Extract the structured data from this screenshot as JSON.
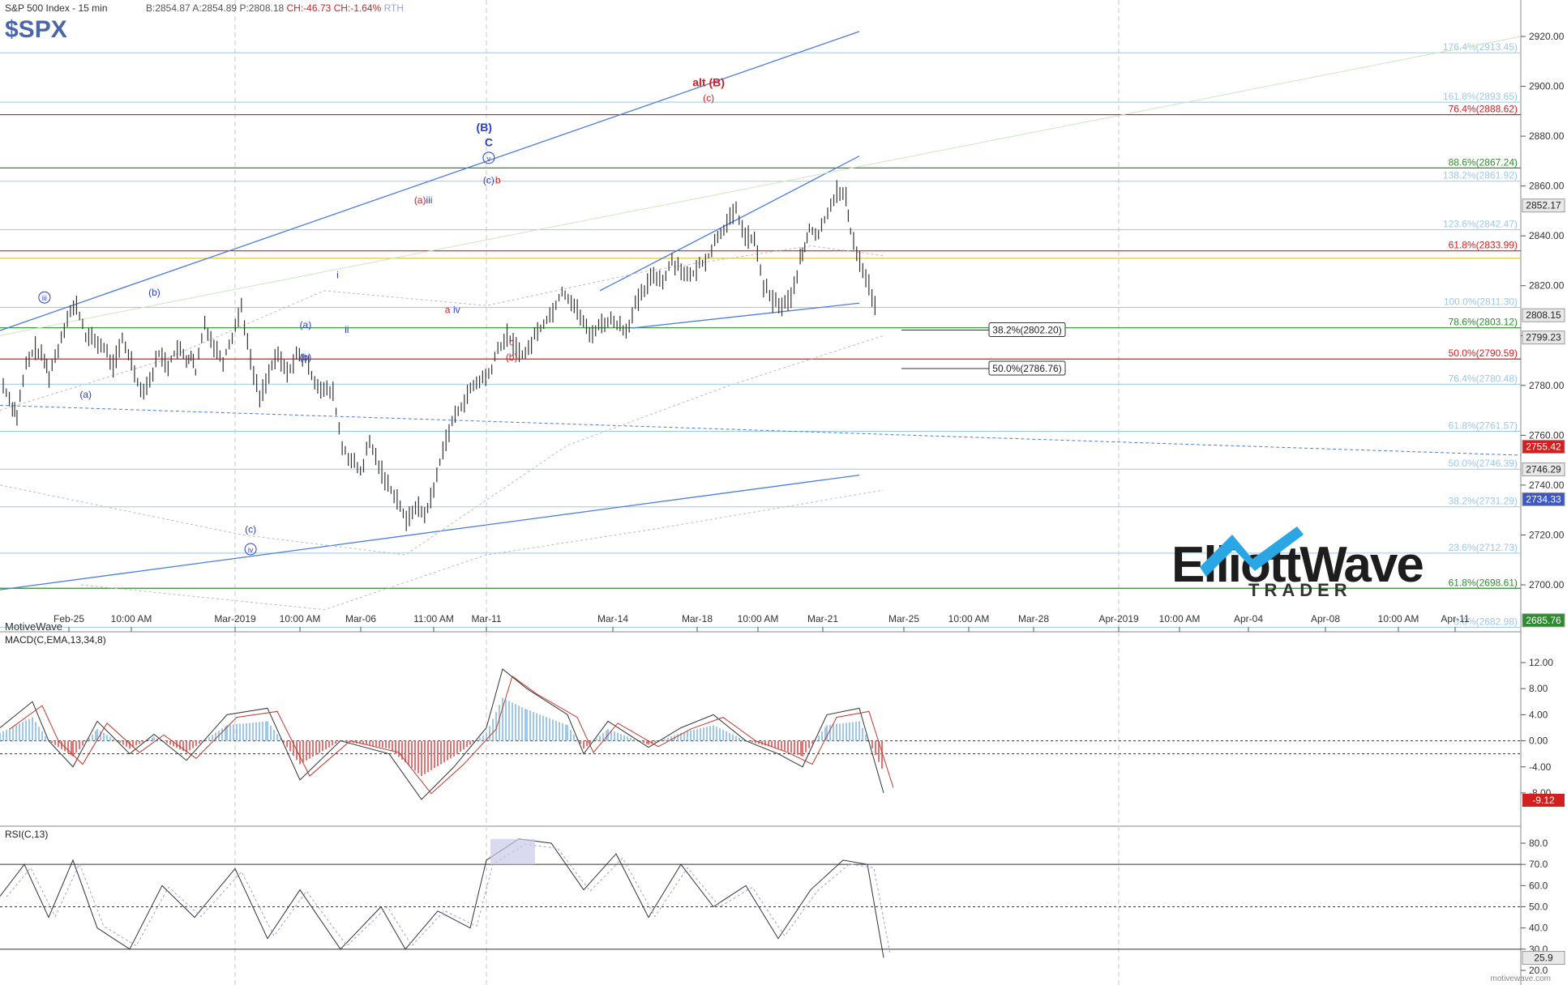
{
  "header": {
    "title": "S&P 500 Index - 15 min",
    "bid": "B:2854.87",
    "ask": "A:2854.89",
    "price": "P:2808.18",
    "change": "CH:-46.73",
    "change_pct": "CH:-1.64%",
    "session": "RTH",
    "symbol": "$SPX"
  },
  "brand": "MotiveWave",
  "watermark": "motivewave.com",
  "logo": {
    "line1": "ElliottWave",
    "line2": "TRADER"
  },
  "colors": {
    "blue_fib": "#9cc8ea",
    "red_fib": "#d21f1f",
    "green_fib": "#2e8b2e",
    "yellow_fib": "#e2c93a",
    "trend": "#4a7de0",
    "bars": "#333333",
    "wave_blue": "#2a3fc8",
    "wave_red": "#d21f1f"
  },
  "chart_data": [
    {
      "type": "ohlc",
      "panel": "price",
      "title": "S&P 500 Index - 15 min",
      "ylim": [
        2680,
        2930
      ],
      "y_ticks": [
        2700,
        2720,
        2740,
        2760,
        2780,
        2800,
        2820,
        2840,
        2860,
        2880,
        2900,
        2920
      ],
      "y_tick_labels": [
        "2700.00",
        "2720.00",
        "2740.00",
        "2760.00",
        "2780.00",
        "2800.00",
        "2820.00",
        "2840.00",
        "2860.00",
        "2880.00",
        "2900.00",
        "2920.00"
      ],
      "x_labels": [
        "Feb-25",
        "10:00 AM",
        "Mar-2019",
        "10:00 AM",
        "Mar-06",
        "11:00 AM",
        "Mar-11",
        "Mar-14",
        "Mar-18",
        "10:00 AM",
        "Mar-21",
        "Mar-25",
        "10:00 AM",
        "Mar-28",
        "Apr-2019",
        "10:00 AM",
        "Apr-04",
        "Apr-08",
        "10:00 AM",
        "Apr-11"
      ],
      "close_path": [
        [
          0,
          2780
        ],
        [
          2,
          2772
        ],
        [
          3,
          2768
        ],
        [
          5,
          2788
        ],
        [
          7,
          2795
        ],
        [
          9,
          2790
        ],
        [
          10,
          2784
        ],
        [
          12,
          2795
        ],
        [
          14,
          2808
        ],
        [
          16,
          2812
        ],
        [
          18,
          2800
        ],
        [
          20,
          2798
        ],
        [
          22,
          2795
        ],
        [
          24,
          2788
        ],
        [
          26,
          2798
        ],
        [
          28,
          2790
        ],
        [
          30,
          2778
        ],
        [
          32,
          2782
        ],
        [
          34,
          2793
        ],
        [
          36,
          2788
        ],
        [
          38,
          2795
        ],
        [
          40,
          2790
        ],
        [
          41,
          2792
        ],
        [
          42,
          2785
        ],
        [
          44,
          2805
        ],
        [
          46,
          2796
        ],
        [
          48,
          2790
        ],
        [
          50,
          2800
        ],
        [
          52,
          2812
        ],
        [
          54,
          2790
        ],
        [
          56,
          2775
        ],
        [
          58,
          2785
        ],
        [
          60,
          2792
        ],
        [
          62,
          2785
        ],
        [
          64,
          2792
        ],
        [
          66,
          2790
        ],
        [
          68,
          2782
        ],
        [
          70,
          2778
        ],
        [
          72,
          2777
        ],
        [
          74,
          2755
        ],
        [
          76,
          2750
        ],
        [
          78,
          2745
        ],
        [
          80,
          2757
        ],
        [
          82,
          2748
        ],
        [
          84,
          2740
        ],
        [
          86,
          2735
        ],
        [
          88,
          2725
        ],
        [
          90,
          2732
        ],
        [
          92,
          2728
        ],
        [
          94,
          2738
        ],
        [
          96,
          2755
        ],
        [
          98,
          2765
        ],
        [
          100,
          2772
        ],
        [
          102,
          2778
        ],
        [
          104,
          2782
        ],
        [
          106,
          2784
        ],
        [
          108,
          2794
        ],
        [
          110,
          2800
        ],
        [
          112,
          2795
        ],
        [
          114,
          2792
        ],
        [
          116,
          2800
        ],
        [
          118,
          2805
        ],
        [
          120,
          2810
        ],
        [
          122,
          2818
        ],
        [
          124,
          2814
        ],
        [
          126,
          2808
        ],
        [
          128,
          2800
        ],
        [
          130,
          2804
        ],
        [
          132,
          2806
        ],
        [
          134,
          2805
        ],
        [
          136,
          2802
        ],
        [
          138,
          2812
        ],
        [
          140,
          2818
        ],
        [
          142,
          2825
        ],
        [
          144,
          2822
        ],
        [
          146,
          2830
        ],
        [
          148,
          2827
        ],
        [
          150,
          2823
        ],
        [
          152,
          2828
        ],
        [
          154,
          2832
        ],
        [
          156,
          2840
        ],
        [
          158,
          2845
        ],
        [
          160,
          2850
        ],
        [
          162,
          2840
        ],
        [
          164,
          2838
        ],
        [
          166,
          2820
        ],
        [
          168,
          2814
        ],
        [
          170,
          2812
        ],
        [
          172,
          2815
        ],
        [
          174,
          2830
        ],
        [
          175,
          2835
        ],
        [
          176,
          2843
        ],
        [
          178,
          2840
        ],
        [
          180,
          2850
        ],
        [
          182,
          2858
        ],
        [
          184,
          2855
        ],
        [
          185,
          2842
        ],
        [
          187,
          2830
        ],
        [
          189,
          2820
        ],
        [
          191,
          2808
        ]
      ],
      "fib_levels": [
        {
          "label": "176.4%(2913.45)",
          "value": 2913.45,
          "color": "blue"
        },
        {
          "label": "161.8%(2893.65)",
          "value": 2893.65,
          "color": "blue"
        },
        {
          "label": "76.4%(2888.62)",
          "value": 2888.62,
          "color": "red"
        },
        {
          "label": "88.6%(2867.24)",
          "value": 2867.24,
          "color": "green"
        },
        {
          "label": "138.2%(2861.92)",
          "value": 2861.92,
          "color": "blue"
        },
        {
          "label": "123.6%(2842.47)",
          "value": 2842.47,
          "color": "blue"
        },
        {
          "label": "61.8%(2833.99)",
          "value": 2833.99,
          "color": "red"
        },
        {
          "label": "100.0%(2811.30)",
          "value": 2811.3,
          "color": "blue"
        },
        {
          "label": "78.6%(2803.12)",
          "value": 2803.12,
          "color": "green"
        },
        {
          "label": "50.0%(2790.59)",
          "value": 2790.59,
          "color": "red"
        },
        {
          "label": "76.4%(2780.48)",
          "value": 2780.48,
          "color": "blue"
        },
        {
          "label": "61.8%(2761.57)",
          "value": 2761.57,
          "color": "blue"
        },
        {
          "label": "50.0%(2746.39)",
          "value": 2746.39,
          "color": "blue"
        },
        {
          "label": "38.2%(2731.29)",
          "value": 2731.29,
          "color": "blue"
        },
        {
          "label": "23.6%(2712.73)",
          "value": 2712.73,
          "color": "blue"
        },
        {
          "label": "61.8%(2698.61)",
          "value": 2698.61,
          "color": "green"
        },
        {
          "label": "0.0%(2682.98)",
          "value": 2682.98,
          "color": "blue"
        }
      ],
      "boxed_levels": [
        {
          "label": "38.2%(2802.20)",
          "value": 2802.2
        },
        {
          "label": "50.0%(2786.76)",
          "value": 2786.76
        }
      ],
      "price_tags": [
        {
          "label": "2852.17",
          "value": 2852.17,
          "style": "gray"
        },
        {
          "label": "2808.15",
          "value": 2808.15,
          "style": "gray"
        },
        {
          "label": "2799.23",
          "value": 2799.23,
          "style": "gray"
        },
        {
          "label": "2755.42",
          "value": 2755.42,
          "style": "red"
        },
        {
          "label": "2746.29",
          "value": 2746.29,
          "style": "gray"
        },
        {
          "label": "2734.33",
          "value": 2734.33,
          "style": "blue"
        },
        {
          "label": "2685.76",
          "value": 2685.76,
          "style": "green"
        }
      ],
      "wave_labels": [
        {
          "text": "ⓘⓘⓘ",
          "display": "iii",
          "x": 9,
          "value": 2814,
          "color": "blue",
          "circled": true
        },
        {
          "text": "(b)",
          "x": 33,
          "value": 2816,
          "color": "blue"
        },
        {
          "text": "(a)",
          "x": 18,
          "value": 2775,
          "color": "blue"
        },
        {
          "text": "(b)",
          "x": 66,
          "value": 2790,
          "color": "blue"
        },
        {
          "text": "(a)",
          "x": 66,
          "value": 2803,
          "color": "blue"
        },
        {
          "text": "(c)",
          "x": 54,
          "value": 2721,
          "color": "blue"
        },
        {
          "text": "iv",
          "x": 54,
          "value": 2713,
          "color": "blue",
          "circled": true
        },
        {
          "text": "i",
          "x": 73,
          "value": 2823,
          "color": "blue"
        },
        {
          "text": "ii",
          "x": 75,
          "value": 2801,
          "color": "blue"
        },
        {
          "text": "(a)",
          "x": 91,
          "value": 2853,
          "color": "red"
        },
        {
          "text": "iii",
          "x": 93,
          "value": 2853,
          "color": "blue"
        },
        {
          "text": "a",
          "x": 97,
          "value": 2809,
          "color": "red"
        },
        {
          "text": "iv",
          "x": 99,
          "value": 2809,
          "color": "blue"
        },
        {
          "text": "(B)",
          "x": 105,
          "value": 2882,
          "color": "blue",
          "bold": true
        },
        {
          "text": "C",
          "x": 106,
          "value": 2876,
          "color": "blue",
          "bold": true
        },
        {
          "text": "v",
          "x": 106,
          "value": 2870,
          "color": "blue",
          "circled": true
        },
        {
          "text": "(c)",
          "x": 106,
          "value": 2861,
          "color": "blue"
        },
        {
          "text": "b",
          "x": 108,
          "value": 2861,
          "color": "red"
        },
        {
          "text": "c",
          "x": 111,
          "value": 2796,
          "color": "red"
        },
        {
          "text": "(b)",
          "x": 111,
          "value": 2790,
          "color": "red"
        },
        {
          "text": "alt (B)",
          "x": 154,
          "value": 2900,
          "color": "red",
          "bold": true
        },
        {
          "text": "(c)",
          "x": 154,
          "value": 2894,
          "color": "red"
        }
      ]
    },
    {
      "type": "line",
      "panel": "macd",
      "title": "MACD(C,EMA,13,34,8)",
      "ylim": [
        -10,
        13
      ],
      "y_tick_labels": [
        "12.00",
        "8.00",
        "4.00",
        "0.00",
        "-4.00",
        "-8.00"
      ],
      "y_ticks": [
        12,
        8,
        4,
        0,
        -4,
        -8
      ],
      "last_value": "-9.12"
    },
    {
      "type": "line",
      "panel": "rsi",
      "title": "RSI(C,13)",
      "ylim": [
        18,
        88
      ],
      "y_tick_labels": [
        "80.0",
        "70.0",
        "60.0",
        "50.0",
        "40.0",
        "30.0",
        "20.0"
      ],
      "y_ticks": [
        80,
        70,
        60,
        50,
        40,
        30,
        20
      ],
      "last_value": "25.9"
    }
  ]
}
